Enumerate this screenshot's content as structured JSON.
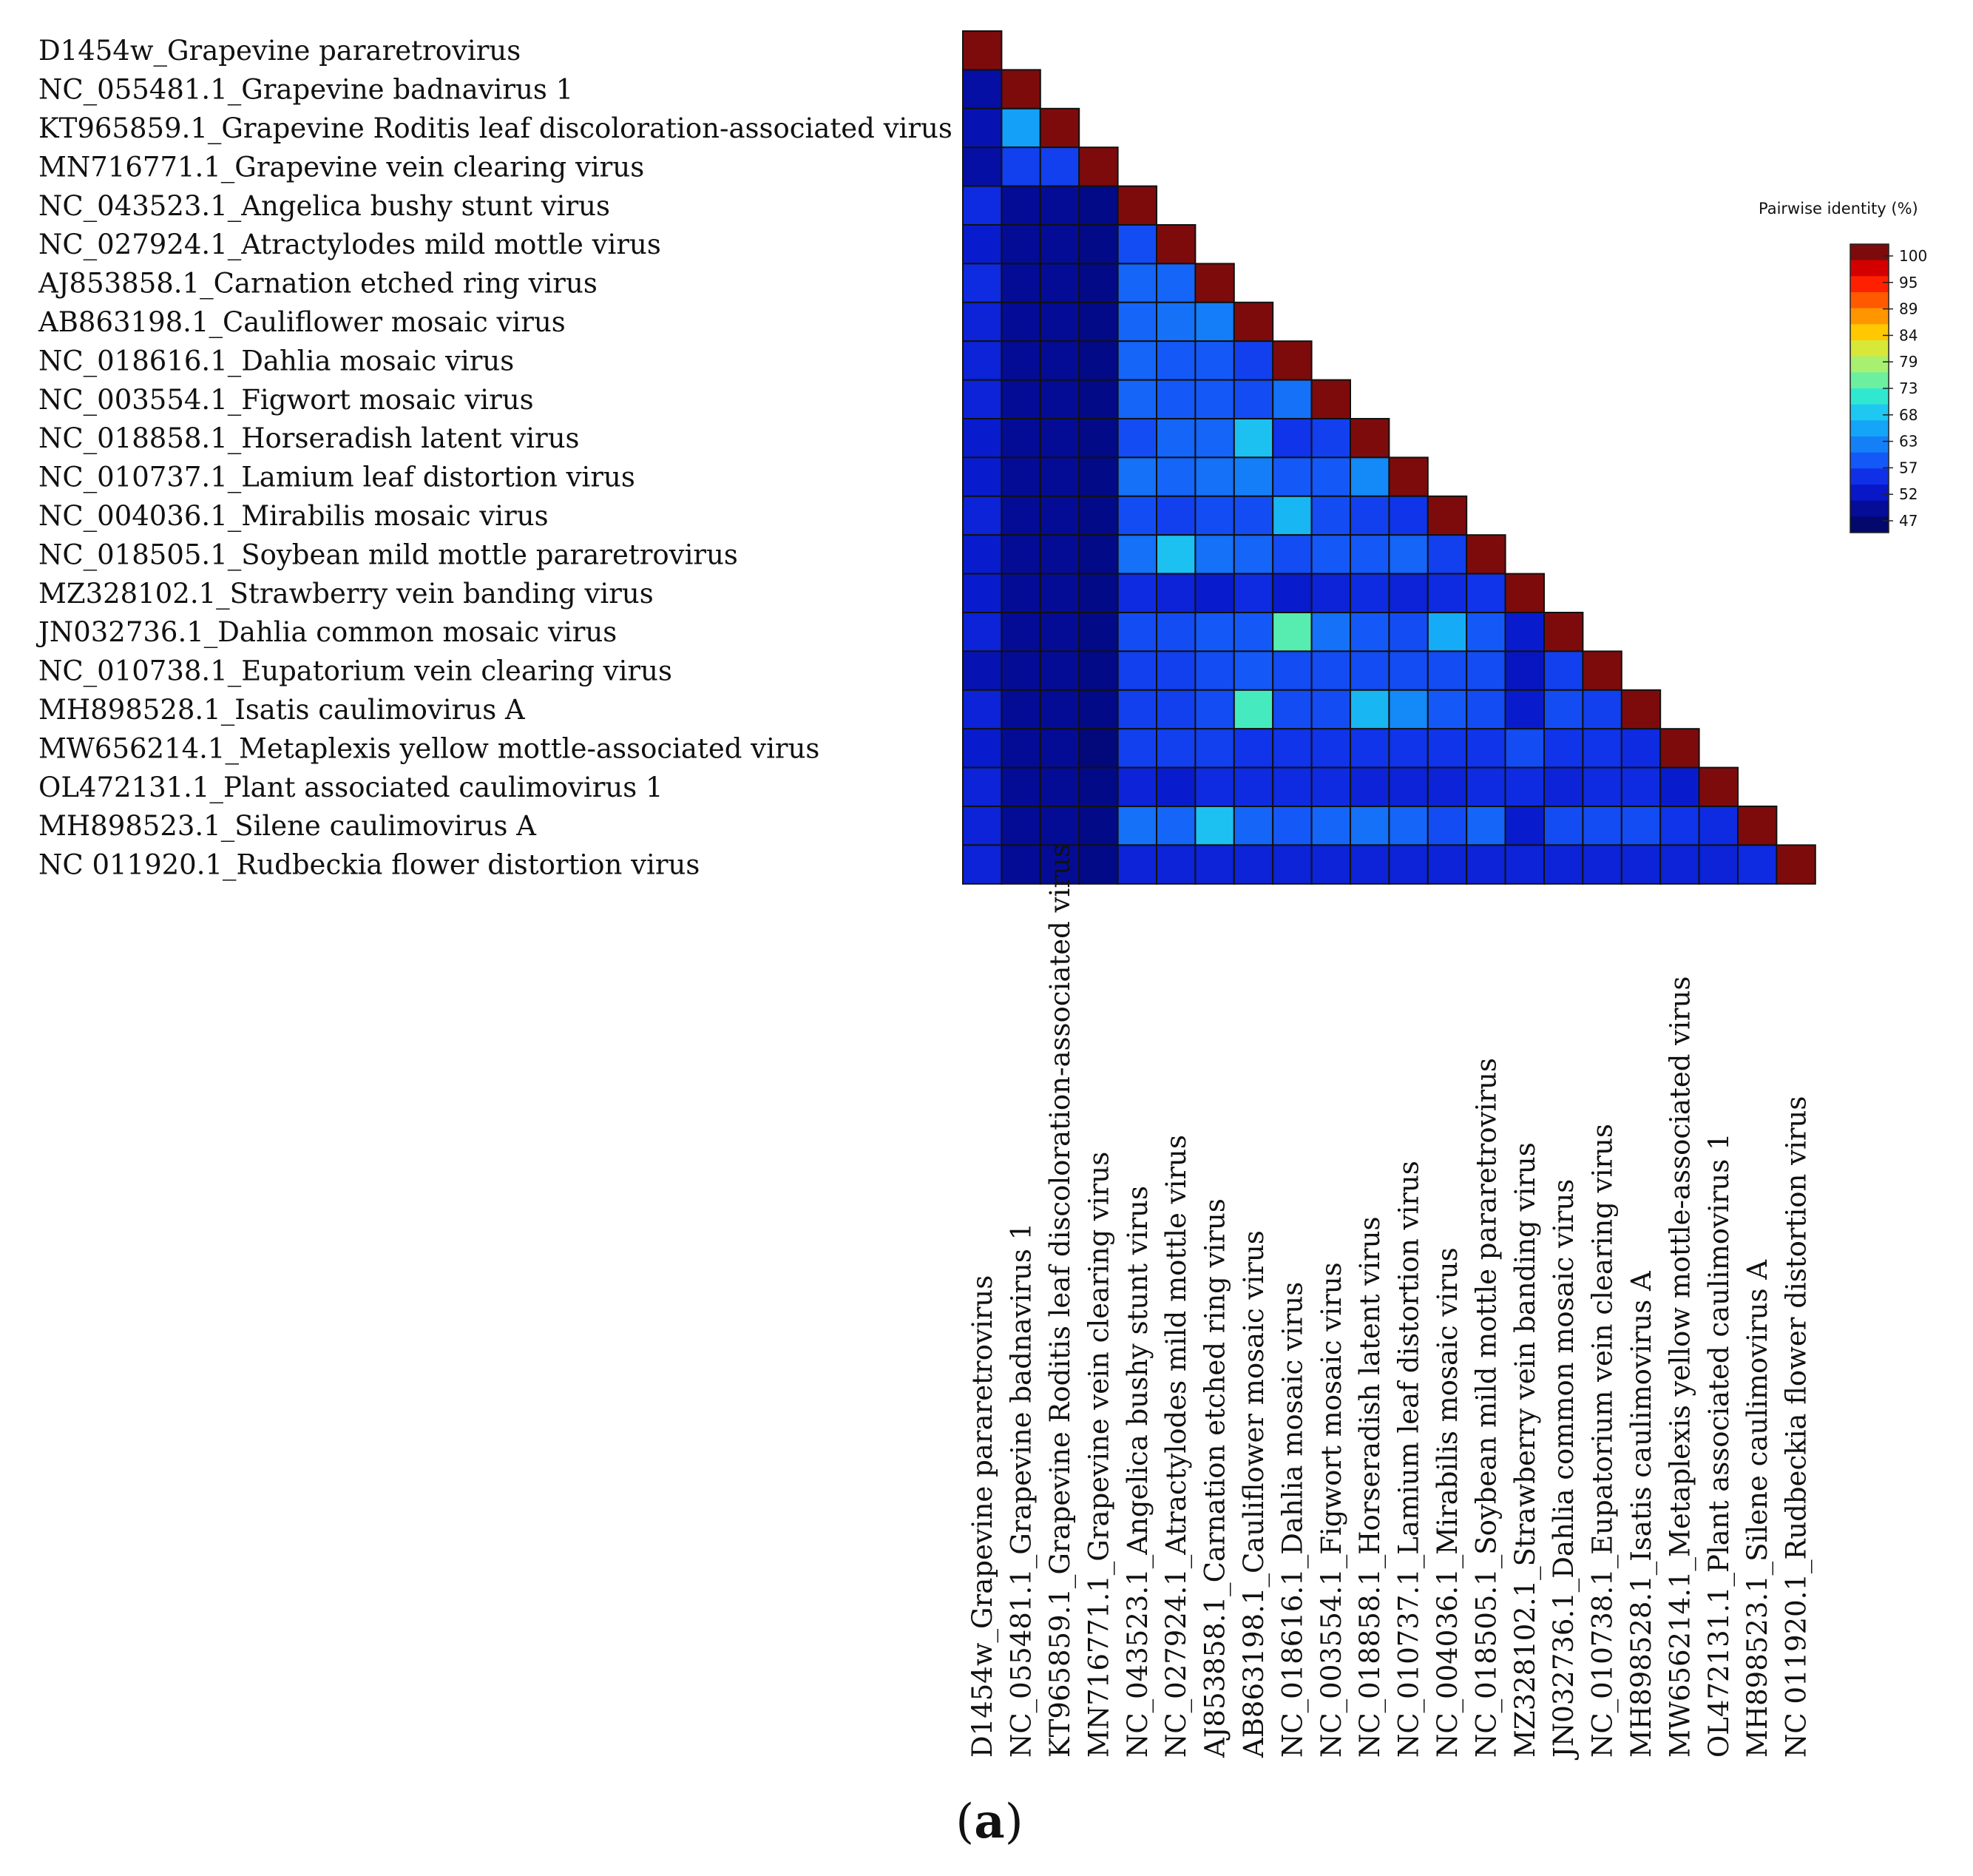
{
  "chart_data": {
    "type": "heatmap",
    "title": "",
    "panel_label": "a",
    "legend_title": "Pairwise identity (%)",
    "legend_ticks": [
      100,
      95,
      89,
      84,
      79,
      73,
      68,
      63,
      57,
      52,
      47
    ],
    "value_range": [
      45,
      100
    ],
    "legend_colors": [
      "#7e0b0c",
      "#d40000",
      "#ff2000",
      "#ff5a00",
      "#ff9600",
      "#ffc800",
      "#d8e838",
      "#a8f070",
      "#6cf0a0",
      "#30e8d0",
      "#1ec8f0",
      "#14a4f8",
      "#1480f8",
      "#1458f8",
      "#1030e8",
      "#0818c8",
      "#040c98",
      "#02086c"
    ],
    "labels": [
      "D1454w_Grapevine pararetrovirus",
      "NC_055481.1_Grapevine badnavirus 1",
      "KT965859.1_Grapevine Roditis leaf discoloration-associated virus",
      "MN716771.1_Grapevine vein clearing virus",
      "NC_043523.1_Angelica bushy stunt virus",
      "NC_027924.1_Atractylodes mild mottle virus",
      "AJ853858.1_Carnation etched ring virus",
      "AB863198.1_Cauliflower mosaic virus",
      "NC_018616.1_Dahlia mosaic virus",
      "NC_003554.1_Figwort mosaic virus",
      "NC_018858.1_Horseradish latent virus",
      "NC_010737.1_Lamium leaf distortion virus",
      "NC_004036.1_Mirabilis mosaic virus",
      "NC_018505.1_Soybean mild mottle pararetrovirus",
      "MZ328102.1_Strawberry vein banding virus",
      "JN032736.1_Dahlia common mosaic virus",
      "NC_010738.1_Eupatorium vein clearing virus",
      "MH898528.1_Isatis caulimovirus A",
      "MW656214.1_Metaplexis yellow mottle-associated virus",
      "OL472131.1_Plant associated caulimovirus 1",
      "MH898523.1_Silene caulimovirus A",
      "NC 011920.1_Rudbeckia flower distortion virus"
    ],
    "matrix": [
      [
        100
      ],
      [
        49,
        100
      ],
      [
        50,
        64,
        100
      ],
      [
        49,
        56,
        56,
        100
      ],
      [
        54,
        48,
        48,
        47,
        100
      ],
      [
        52,
        48,
        48,
        47,
        57,
        100
      ],
      [
        54,
        48,
        48,
        47,
        59,
        59,
        100
      ],
      [
        53,
        48,
        48,
        47,
        59,
        60,
        61,
        100
      ],
      [
        53,
        48,
        48,
        47,
        59,
        58,
        58,
        56,
        100
      ],
      [
        53,
        48,
        48,
        47,
        59,
        58,
        58,
        57,
        60,
        100
      ],
      [
        52,
        48,
        48,
        47,
        57,
        59,
        59,
        67,
        55,
        56,
        100
      ],
      [
        52,
        48,
        48,
        47,
        60,
        59,
        60,
        61,
        58,
        58,
        62,
        100
      ],
      [
        53,
        48,
        48,
        47,
        57,
        56,
        57,
        57,
        66,
        57,
        56,
        55,
        100
      ],
      [
        52,
        48,
        48,
        47,
        60,
        67,
        60,
        59,
        57,
        58,
        58,
        59,
        56,
        100
      ],
      [
        52,
        48,
        48,
        47,
        54,
        53,
        52,
        54,
        52,
        53,
        54,
        53,
        54,
        55,
        100
      ],
      [
        53,
        48,
        48,
        47,
        57,
        57,
        58,
        58,
        73,
        60,
        58,
        57,
        65,
        58,
        52,
        100
      ],
      [
        50,
        48,
        48,
        47,
        56,
        56,
        57,
        58,
        57,
        57,
        57,
        57,
        57,
        57,
        51,
        56,
        100
      ],
      [
        53,
        48,
        48,
        47,
        56,
        56,
        57,
        72,
        57,
        57,
        66,
        62,
        58,
        57,
        52,
        57,
        56,
        100
      ],
      [
        52,
        48,
        48,
        46,
        56,
        56,
        56,
        55,
        55,
        55,
        55,
        55,
        55,
        55,
        57,
        55,
        55,
        54,
        100
      ],
      [
        53,
        48,
        48,
        47,
        53,
        52,
        54,
        54,
        54,
        54,
        53,
        53,
        53,
        54,
        54,
        53,
        54,
        54,
        52,
        100
      ],
      [
        53,
        48,
        48,
        47,
        60,
        59,
        67,
        59,
        58,
        59,
        60,
        59,
        57,
        59,
        52,
        57,
        57,
        57,
        55,
        54,
        100
      ],
      [
        53,
        48,
        48,
        47,
        53,
        53,
        53,
        53,
        53,
        53,
        53,
        53,
        53,
        53,
        53,
        53,
        53,
        53,
        53,
        53,
        54,
        100
      ]
    ]
  }
}
